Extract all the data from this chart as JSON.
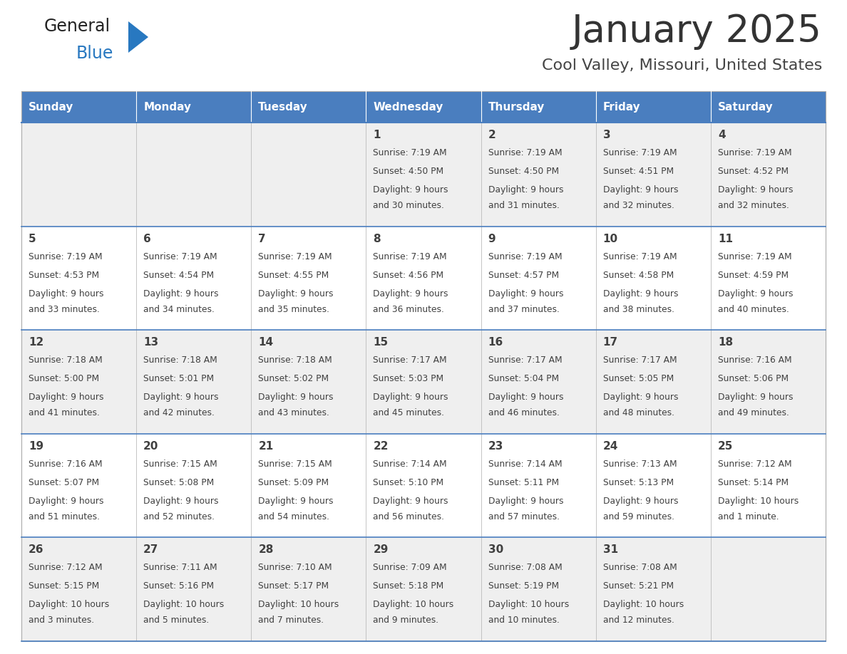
{
  "title": "January 2025",
  "subtitle": "Cool Valley, Missouri, United States",
  "days_of_week": [
    "Sunday",
    "Monday",
    "Tuesday",
    "Wednesday",
    "Thursday",
    "Friday",
    "Saturday"
  ],
  "header_bg": "#4a7ebf",
  "header_text_color": "#FFFFFF",
  "cell_bg_odd": "#EFEFEF",
  "cell_bg_even": "#FFFFFF",
  "separator_color": "#4a7ebf",
  "text_color": "#404040",
  "title_color": "#333333",
  "subtitle_color": "#444444",
  "logo_general_color": "#222222",
  "logo_blue_color": "#2878c0",
  "calendar_data": [
    [
      {
        "day": "",
        "sunrise": "",
        "sunset": "",
        "daylight": ""
      },
      {
        "day": "",
        "sunrise": "",
        "sunset": "",
        "daylight": ""
      },
      {
        "day": "",
        "sunrise": "",
        "sunset": "",
        "daylight": ""
      },
      {
        "day": "1",
        "sunrise": "7:19 AM",
        "sunset": "4:50 PM",
        "daylight": "9 hours\nand 30 minutes."
      },
      {
        "day": "2",
        "sunrise": "7:19 AM",
        "sunset": "4:50 PM",
        "daylight": "9 hours\nand 31 minutes."
      },
      {
        "day": "3",
        "sunrise": "7:19 AM",
        "sunset": "4:51 PM",
        "daylight": "9 hours\nand 32 minutes."
      },
      {
        "day": "4",
        "sunrise": "7:19 AM",
        "sunset": "4:52 PM",
        "daylight": "9 hours\nand 32 minutes."
      }
    ],
    [
      {
        "day": "5",
        "sunrise": "7:19 AM",
        "sunset": "4:53 PM",
        "daylight": "9 hours\nand 33 minutes."
      },
      {
        "day": "6",
        "sunrise": "7:19 AM",
        "sunset": "4:54 PM",
        "daylight": "9 hours\nand 34 minutes."
      },
      {
        "day": "7",
        "sunrise": "7:19 AM",
        "sunset": "4:55 PM",
        "daylight": "9 hours\nand 35 minutes."
      },
      {
        "day": "8",
        "sunrise": "7:19 AM",
        "sunset": "4:56 PM",
        "daylight": "9 hours\nand 36 minutes."
      },
      {
        "day": "9",
        "sunrise": "7:19 AM",
        "sunset": "4:57 PM",
        "daylight": "9 hours\nand 37 minutes."
      },
      {
        "day": "10",
        "sunrise": "7:19 AM",
        "sunset": "4:58 PM",
        "daylight": "9 hours\nand 38 minutes."
      },
      {
        "day": "11",
        "sunrise": "7:19 AM",
        "sunset": "4:59 PM",
        "daylight": "9 hours\nand 40 minutes."
      }
    ],
    [
      {
        "day": "12",
        "sunrise": "7:18 AM",
        "sunset": "5:00 PM",
        "daylight": "9 hours\nand 41 minutes."
      },
      {
        "day": "13",
        "sunrise": "7:18 AM",
        "sunset": "5:01 PM",
        "daylight": "9 hours\nand 42 minutes."
      },
      {
        "day": "14",
        "sunrise": "7:18 AM",
        "sunset": "5:02 PM",
        "daylight": "9 hours\nand 43 minutes."
      },
      {
        "day": "15",
        "sunrise": "7:17 AM",
        "sunset": "5:03 PM",
        "daylight": "9 hours\nand 45 minutes."
      },
      {
        "day": "16",
        "sunrise": "7:17 AM",
        "sunset": "5:04 PM",
        "daylight": "9 hours\nand 46 minutes."
      },
      {
        "day": "17",
        "sunrise": "7:17 AM",
        "sunset": "5:05 PM",
        "daylight": "9 hours\nand 48 minutes."
      },
      {
        "day": "18",
        "sunrise": "7:16 AM",
        "sunset": "5:06 PM",
        "daylight": "9 hours\nand 49 minutes."
      }
    ],
    [
      {
        "day": "19",
        "sunrise": "7:16 AM",
        "sunset": "5:07 PM",
        "daylight": "9 hours\nand 51 minutes."
      },
      {
        "day": "20",
        "sunrise": "7:15 AM",
        "sunset": "5:08 PM",
        "daylight": "9 hours\nand 52 minutes."
      },
      {
        "day": "21",
        "sunrise": "7:15 AM",
        "sunset": "5:09 PM",
        "daylight": "9 hours\nand 54 minutes."
      },
      {
        "day": "22",
        "sunrise": "7:14 AM",
        "sunset": "5:10 PM",
        "daylight": "9 hours\nand 56 minutes."
      },
      {
        "day": "23",
        "sunrise": "7:14 AM",
        "sunset": "5:11 PM",
        "daylight": "9 hours\nand 57 minutes."
      },
      {
        "day": "24",
        "sunrise": "7:13 AM",
        "sunset": "5:13 PM",
        "daylight": "9 hours\nand 59 minutes."
      },
      {
        "day": "25",
        "sunrise": "7:12 AM",
        "sunset": "5:14 PM",
        "daylight": "10 hours\nand 1 minute."
      }
    ],
    [
      {
        "day": "26",
        "sunrise": "7:12 AM",
        "sunset": "5:15 PM",
        "daylight": "10 hours\nand 3 minutes."
      },
      {
        "day": "27",
        "sunrise": "7:11 AM",
        "sunset": "5:16 PM",
        "daylight": "10 hours\nand 5 minutes."
      },
      {
        "day": "28",
        "sunrise": "7:10 AM",
        "sunset": "5:17 PM",
        "daylight": "10 hours\nand 7 minutes."
      },
      {
        "day": "29",
        "sunrise": "7:09 AM",
        "sunset": "5:18 PM",
        "daylight": "10 hours\nand 9 minutes."
      },
      {
        "day": "30",
        "sunrise": "7:08 AM",
        "sunset": "5:19 PM",
        "daylight": "10 hours\nand 10 minutes."
      },
      {
        "day": "31",
        "sunrise": "7:08 AM",
        "sunset": "5:21 PM",
        "daylight": "10 hours\nand 12 minutes."
      },
      {
        "day": "",
        "sunrise": "",
        "sunset": "",
        "daylight": ""
      }
    ]
  ]
}
